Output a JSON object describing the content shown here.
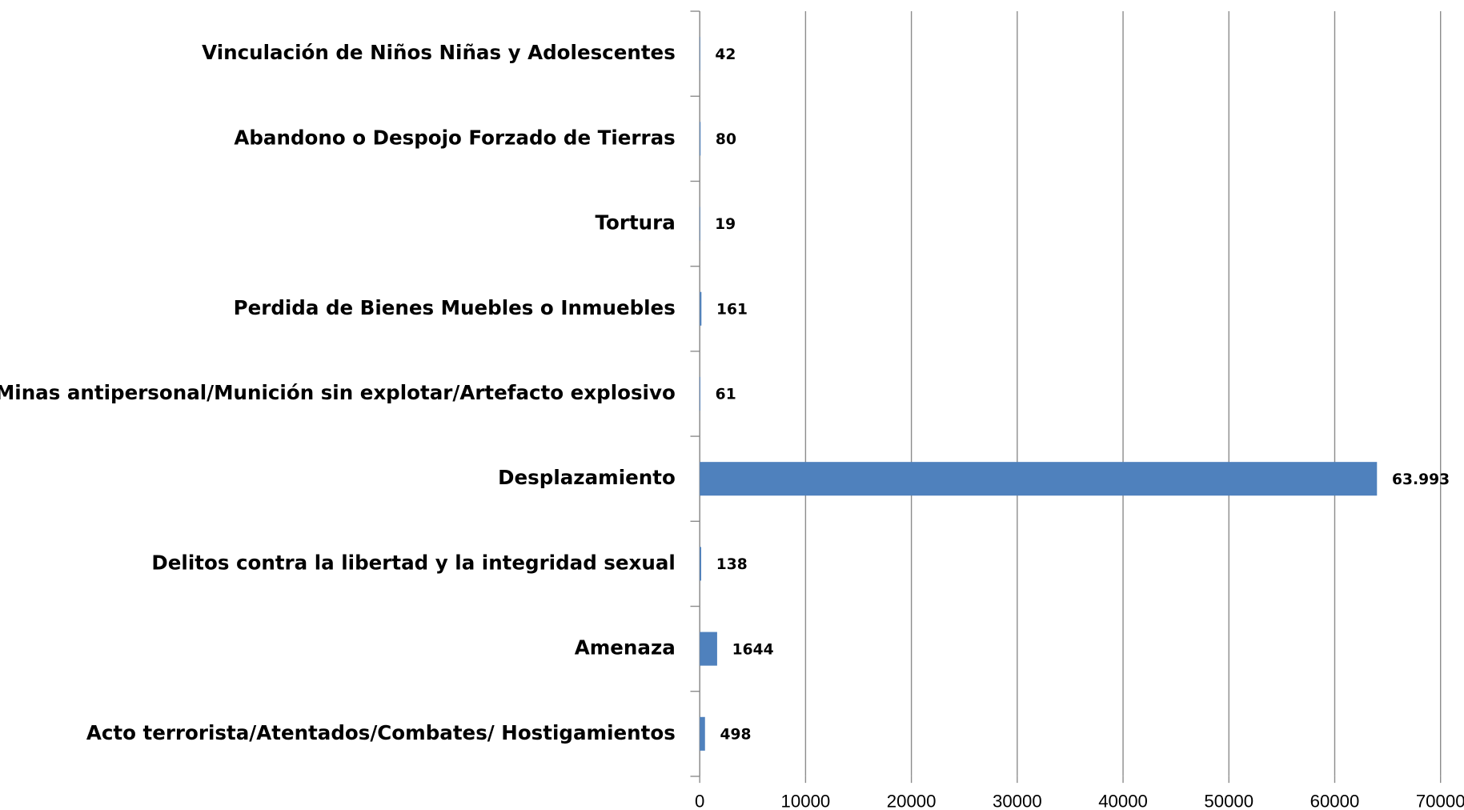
{
  "chart_data": {
    "type": "bar",
    "orientation": "horizontal",
    "categories": [
      "Acto terrorista/Atentados/Combates/ Hostigamientos",
      "Amenaza",
      "Delitos contra la libertad y la integridad sexual",
      "Desplazamiento",
      "Minas antipersonal/Munición sin explotar/Artefacto explosivo",
      "Perdida de Bienes Muebles o Inmuebles",
      "Tortura",
      "Abandono o Despojo Forzado de Tierras",
      "Vinculación de Niños Niñas y Adolescentes"
    ],
    "values": [
      498,
      1644,
      138,
      63993,
      61,
      161,
      19,
      80,
      42
    ],
    "value_labels": [
      "498",
      "1644",
      "138",
      "63.993",
      "61",
      "161",
      "19",
      "80",
      "42"
    ],
    "color": "#4f81bd",
    "xlim": [
      0,
      70000
    ],
    "xticks": [
      0,
      10000,
      20000,
      30000,
      40000,
      50000,
      60000,
      70000
    ],
    "grid": true
  }
}
